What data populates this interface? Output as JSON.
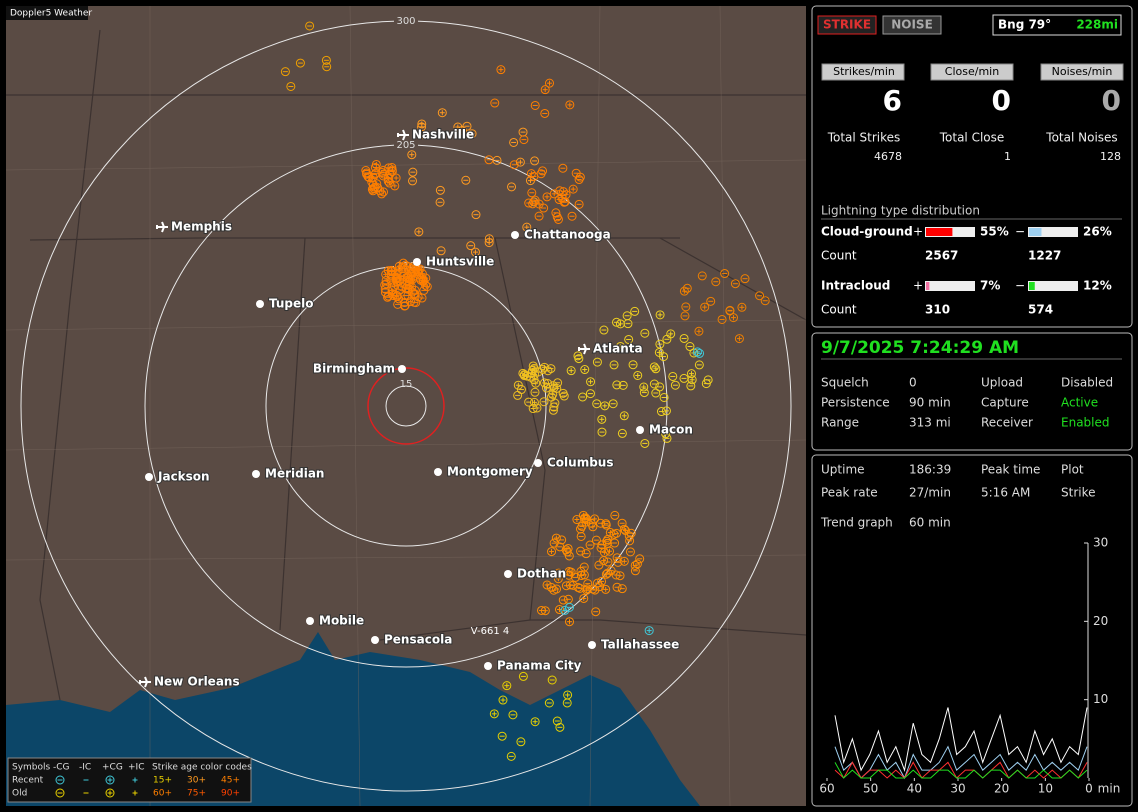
{
  "map": {
    "title": "Doppler5 Weather",
    "ring_labels": [
      "300",
      "205",
      "110",
      "15"
    ],
    "annotation": "V-661 4",
    "cities": [
      {
        "name": "Nashville",
        "airport": true
      },
      {
        "name": "Memphis",
        "airport": true
      },
      {
        "name": "Chattanooga",
        "airport": false
      },
      {
        "name": "Huntsville",
        "airport": false
      },
      {
        "name": "Tupelo",
        "airport": false
      },
      {
        "name": "Birmingham",
        "airport": false
      },
      {
        "name": "Atlanta",
        "airport": true
      },
      {
        "name": "Macon",
        "airport": false
      },
      {
        "name": "Montgomery",
        "airport": false
      },
      {
        "name": "Columbus",
        "airport": false
      },
      {
        "name": "Jackson",
        "airport": false
      },
      {
        "name": "Meridian",
        "airport": false
      },
      {
        "name": "Dothan",
        "airport": false
      },
      {
        "name": "Mobile",
        "airport": false
      },
      {
        "name": "Pensacola",
        "airport": false
      },
      {
        "name": "Tallahassee",
        "airport": false
      },
      {
        "name": "Panama City",
        "airport": false
      },
      {
        "name": "New Orleans",
        "airport": true
      }
    ],
    "legend": {
      "symbols": "Symbols",
      "types": [
        "-CG",
        "-IC",
        "+CG",
        "+IC"
      ],
      "age_title": "Strike age color codes",
      "rows": [
        "Recent",
        "Old"
      ],
      "recent_ages": [
        "15+",
        "30+",
        "45+"
      ],
      "old_ages": [
        "60+",
        "75+",
        "90+"
      ]
    }
  },
  "status": {
    "strike": "STRIKE",
    "noise": "NOISE",
    "bearing": "Bng 79°",
    "distance": "228mi"
  },
  "rates": [
    {
      "label": "Strikes/min",
      "value": 6
    },
    {
      "label": "Close/min",
      "value": 0
    },
    {
      "label": "Noises/min",
      "value": 0
    }
  ],
  "totals": [
    {
      "label": "Total Strikes",
      "value": 4678
    },
    {
      "label": "Total Close",
      "value": 1
    },
    {
      "label": "Total Noises",
      "value": 128
    }
  ],
  "distribution": {
    "title": "Lightning type distribution",
    "plus": "+",
    "minus": "−",
    "rows": [
      {
        "label": "Cloud-ground",
        "positive": {
          "value": 55,
          "label": "55%"
        },
        "positive_color": "#ff0000",
        "negative": {
          "value": 26,
          "label": "26%"
        },
        "negative_color": "#9fd0f0",
        "count_label": "Count",
        "positive_count": 2567,
        "negative_count": 1227
      },
      {
        "label": "Intracloud",
        "positive": {
          "value": 7,
          "label": "7%"
        },
        "positive_color": "#f070a0",
        "negative": {
          "value": 12,
          "label": "12%"
        },
        "negative_color": "#20e020",
        "count_label": "Count",
        "positive_count": 310,
        "negative_count": 574
      }
    ]
  },
  "datetime": "9/7/2025 7:24:29 AM",
  "settings": [
    [
      "Squelch",
      "0",
      "Upload",
      "Disabled"
    ],
    [
      "Persistence",
      "90 min",
      "Capture",
      "Active"
    ],
    [
      "Range",
      "313 mi",
      "Receiver",
      "Enabled"
    ]
  ],
  "stats": [
    [
      "Uptime",
      "186:39",
      "Peak time",
      "Plot"
    ],
    [
      "Peak rate",
      "27/min",
      "5:16 AM",
      "Strike"
    ],
    [
      "Trend graph",
      "60 min"
    ]
  ],
  "trend": {
    "ylim": [
      0,
      30
    ],
    "yticks": [
      30,
      20,
      10
    ],
    "xlim": [
      60,
      0
    ],
    "xticks": [
      60,
      50,
      40,
      30,
      20,
      10,
      0
    ],
    "x_unit": "min",
    "series": [
      {
        "color": "#ffffff",
        "values": [
          8,
          2,
          5,
          1,
          3,
          6,
          2,
          4,
          1,
          7,
          3,
          2,
          5,
          9,
          3,
          4,
          6,
          2,
          5,
          8,
          3,
          4,
          2,
          6,
          3,
          5,
          2,
          4,
          3,
          9
        ]
      },
      {
        "color": "#9fd0f0",
        "values": [
          4,
          1,
          2,
          0,
          1,
          3,
          1,
          2,
          0,
          3,
          1,
          1,
          2,
          4,
          1,
          2,
          3,
          1,
          2,
          3,
          1,
          2,
          1,
          3,
          1,
          2,
          1,
          2,
          1,
          4
        ]
      },
      {
        "color": "#ff3030",
        "values": [
          1,
          0,
          2,
          0,
          1,
          1,
          0,
          1,
          0,
          2,
          0,
          1,
          1,
          2,
          0,
          1,
          1,
          0,
          1,
          2,
          0,
          1,
          0,
          1,
          0,
          1,
          0,
          1,
          0,
          2
        ]
      },
      {
        "color": "#20e020",
        "values": [
          2,
          0,
          1,
          0,
          0,
          1,
          1,
          0,
          0,
          1,
          0,
          0,
          1,
          1,
          0,
          0,
          1,
          0,
          1,
          1,
          0,
          1,
          0,
          0,
          1,
          0,
          0,
          1,
          0,
          1
        ]
      }
    ]
  }
}
